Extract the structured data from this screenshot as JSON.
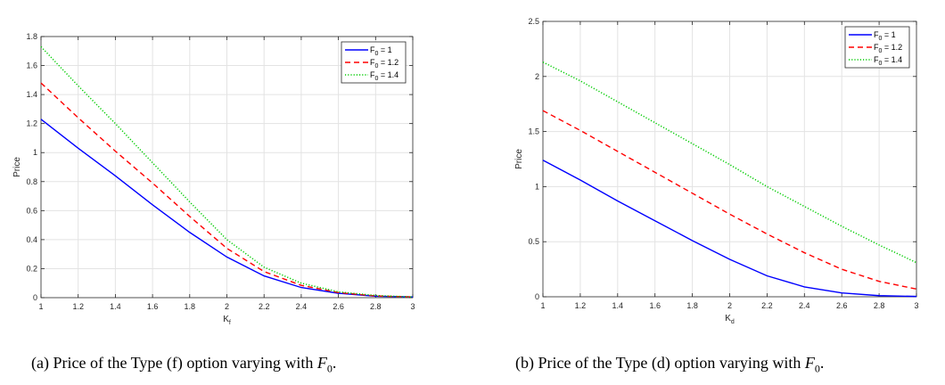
{
  "chart_data": [
    {
      "type": "line",
      "xlabel": "K",
      "xlabel_sub": "f",
      "ylabel": "Price",
      "xlim": [
        1,
        3
      ],
      "ylim": [
        0,
        1.8
      ],
      "xticks": [
        1,
        1.2,
        1.4,
        1.6,
        1.8,
        2,
        2.2,
        2.4,
        2.6,
        2.8,
        3
      ],
      "yticks": [
        0,
        0.2,
        0.4,
        0.6,
        0.8,
        1,
        1.2,
        1.4,
        1.6,
        1.8
      ],
      "grid": true,
      "legend_position": "top-right",
      "series": [
        {
          "name": "F",
          "name_sub": "0",
          "name_suffix": " = 1",
          "color": "#0000ff",
          "dash": "solid",
          "x": [
            1,
            1.2,
            1.4,
            1.6,
            1.8,
            2,
            2.2,
            2.4,
            2.6,
            2.8,
            3
          ],
          "y": [
            1.23,
            1.03,
            0.84,
            0.64,
            0.45,
            0.28,
            0.15,
            0.07,
            0.03,
            0.01,
            0.005
          ]
        },
        {
          "name": "F",
          "name_sub": "0",
          "name_suffix": " = 1.2",
          "color": "#ff0000",
          "dash": "dashed",
          "x": [
            1,
            1.2,
            1.4,
            1.6,
            1.8,
            2,
            2.2,
            2.4,
            2.6,
            2.8,
            3
          ],
          "y": [
            1.48,
            1.24,
            1.01,
            0.79,
            0.56,
            0.34,
            0.18,
            0.085,
            0.035,
            0.012,
            0.005
          ]
        },
        {
          "name": "F",
          "name_sub": "0",
          "name_suffix": " = 1.4",
          "color": "#00cc00",
          "dash": "dotted",
          "x": [
            1,
            1.2,
            1.4,
            1.6,
            1.8,
            2,
            2.2,
            2.4,
            2.6,
            2.8,
            3
          ],
          "y": [
            1.73,
            1.46,
            1.2,
            0.93,
            0.66,
            0.4,
            0.21,
            0.1,
            0.04,
            0.015,
            0.005
          ]
        }
      ],
      "caption_prefix": "(a)  Price of the Type (f) option varying with ",
      "caption_var": "F",
      "caption_sub": "0",
      "caption_suffix": "."
    },
    {
      "type": "line",
      "xlabel": "K",
      "xlabel_sub": "d",
      "ylabel": "Price",
      "xlim": [
        1,
        3
      ],
      "ylim": [
        0,
        2.5
      ],
      "xticks": [
        1,
        1.2,
        1.4,
        1.6,
        1.8,
        2,
        2.2,
        2.4,
        2.6,
        2.8,
        3
      ],
      "yticks": [
        0,
        0.5,
        1,
        1.5,
        2,
        2.5
      ],
      "grid": true,
      "legend_position": "top-right",
      "series": [
        {
          "name": "F",
          "name_sub": "0",
          "name_suffix": " = 1",
          "color": "#0000ff",
          "dash": "solid",
          "x": [
            1,
            1.2,
            1.4,
            1.6,
            1.8,
            2,
            2.2,
            2.4,
            2.6,
            2.8,
            3
          ],
          "y": [
            1.24,
            1.06,
            0.87,
            0.69,
            0.51,
            0.34,
            0.19,
            0.09,
            0.035,
            0.01,
            0.003
          ]
        },
        {
          "name": "F",
          "name_sub": "0",
          "name_suffix": " = 1.2",
          "color": "#ff0000",
          "dash": "dashed",
          "x": [
            1,
            1.2,
            1.4,
            1.6,
            1.8,
            2,
            2.2,
            2.4,
            2.6,
            2.8,
            3
          ],
          "y": [
            1.69,
            1.51,
            1.32,
            1.13,
            0.94,
            0.75,
            0.57,
            0.4,
            0.25,
            0.14,
            0.07
          ]
        },
        {
          "name": "F",
          "name_sub": "0",
          "name_suffix": " = 1.4",
          "color": "#00cc00",
          "dash": "dotted",
          "x": [
            1,
            1.2,
            1.4,
            1.6,
            1.8,
            2,
            2.2,
            2.4,
            2.6,
            2.8,
            3
          ],
          "y": [
            2.13,
            1.96,
            1.77,
            1.58,
            1.39,
            1.2,
            1.0,
            0.82,
            0.64,
            0.47,
            0.31
          ]
        }
      ],
      "caption_prefix": "(b)  Price of the Type (d) option varying with ",
      "caption_var": "F",
      "caption_sub": "0",
      "caption_suffix": "."
    }
  ]
}
